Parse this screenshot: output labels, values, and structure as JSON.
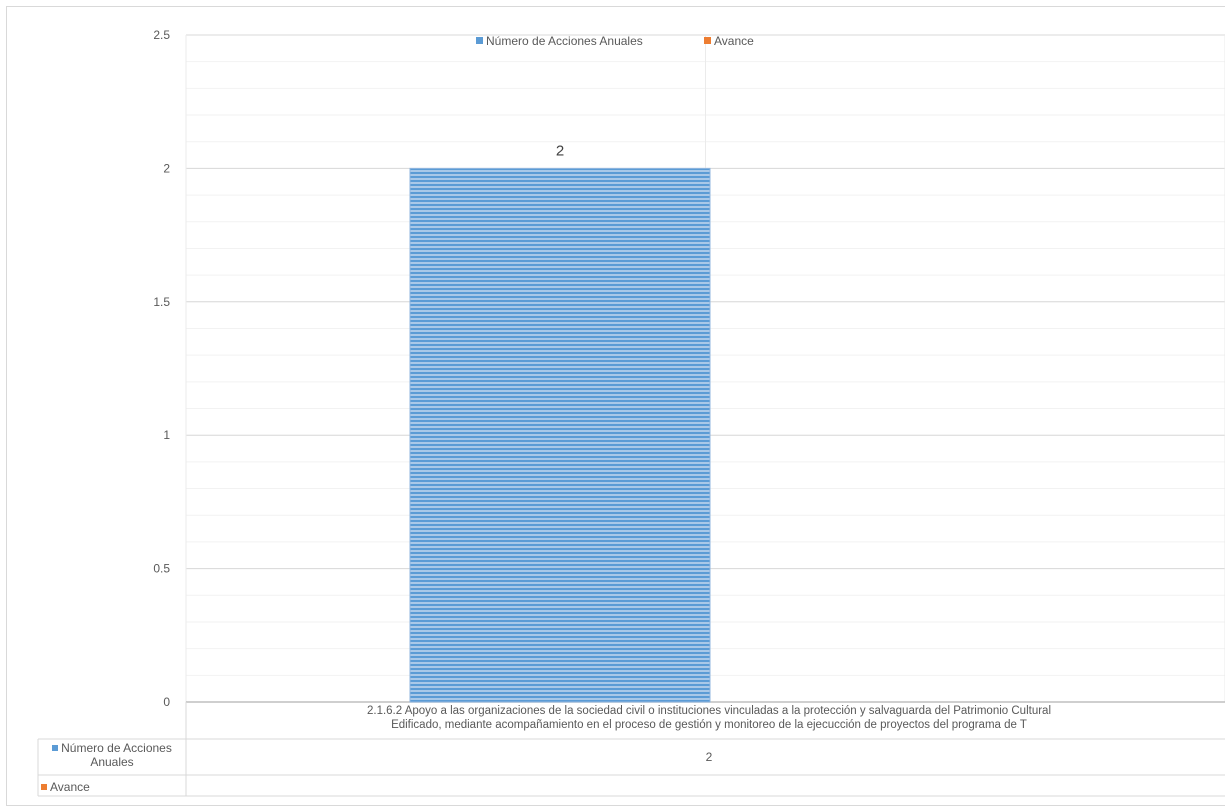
{
  "chart_data": {
    "type": "bar",
    "categories": [
      "2.1.6.2 Apoyo a las organizaciones de la sociedad civil o instituciones vinculadas a la protección y salvaguarda del Patrimonio Cultural Edificado, mediante acompañamiento en el proceso de gestión y monitoreo de la ejecucción de proyectos del programa de T"
    ],
    "category_lines": [
      "2.1.6.2 Apoyo a las organizaciones de la sociedad civil o instituciones vinculadas a la protección y salvaguarda del Patrimonio Cultural",
      "Edificado, mediante acompañamiento en el proceso de gestión y monitoreo de la ejecucción de proyectos del programa de T"
    ],
    "series": [
      {
        "name": "Número de Acciones Anuales",
        "values": [
          2
        ],
        "color": "#5b9bd5",
        "table_label_lines": [
          "Número de Acciones",
          "Anuales"
        ],
        "table_value": "2"
      },
      {
        "name": "Avance",
        "values": [
          null
        ],
        "color": "#ed7d31",
        "table_label_lines": [
          "Avance"
        ],
        "table_value": ""
      }
    ],
    "yticks": [
      "0",
      "0.5",
      "1",
      "1.5",
      "2",
      "2.5"
    ],
    "ylim": [
      0,
      2.5
    ],
    "data_labels": [
      "2"
    ],
    "legend_position": "top",
    "grid": true,
    "data_table": true
  }
}
